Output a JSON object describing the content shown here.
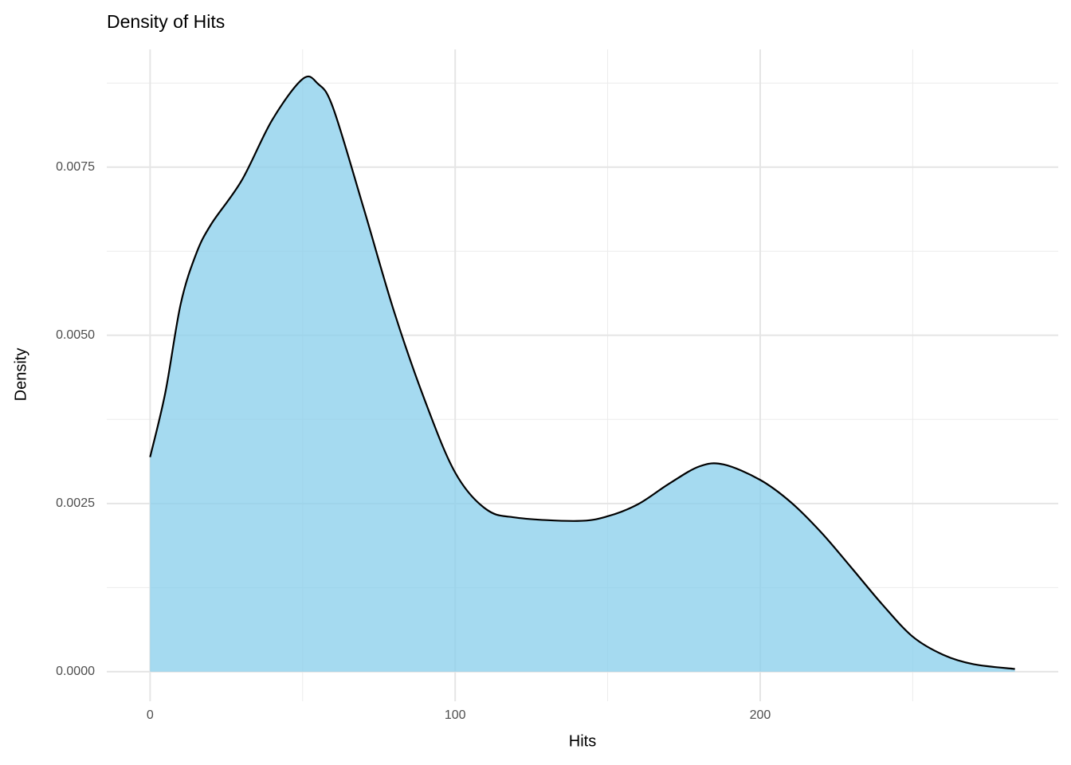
{
  "chart_data": {
    "type": "area",
    "title": "Density of Hits",
    "x_label": "Hits",
    "y_label": "Density",
    "x": [
      0,
      5,
      10,
      15,
      20,
      30,
      40,
      50,
      55,
      60,
      70,
      80,
      90,
      100,
      110,
      120,
      140,
      150,
      160,
      170,
      180,
      188,
      200,
      210,
      220,
      230,
      240,
      250,
      260,
      270,
      283.5
    ],
    "values": [
      0.00319,
      0.00415,
      0.00546,
      0.0062,
      0.00665,
      0.0073,
      0.0082,
      0.00881,
      0.00874,
      0.00838,
      0.00689,
      0.00535,
      0.00404,
      0.00296,
      0.00242,
      0.00229,
      0.00224,
      0.00231,
      0.00249,
      0.00279,
      0.00305,
      0.00308,
      0.00285,
      0.00252,
      0.00207,
      0.00154,
      0.001,
      0.00052,
      0.00025,
      0.00011,
      4e-05
    ],
    "color": "#87ceeb",
    "fill_opacity": 0.75,
    "line_color": "#000000",
    "xlim": [
      -14.2,
      297.7
    ],
    "ylim": [
      -0.00044,
      0.00925
    ],
    "xticks": [
      0,
      100,
      200
    ],
    "yticks": [
      {
        "value": 0,
        "label": "0.0000"
      },
      {
        "value": 0.0025,
        "label": "0.0025"
      },
      {
        "value": 0.005,
        "label": "0.0050"
      },
      {
        "value": 0.0075,
        "label": "0.0075"
      }
    ],
    "xminor": [
      50,
      150,
      250
    ],
    "yminor": [
      0.00125,
      0.00375,
      0.00625,
      0.00875
    ],
    "grid": true
  }
}
